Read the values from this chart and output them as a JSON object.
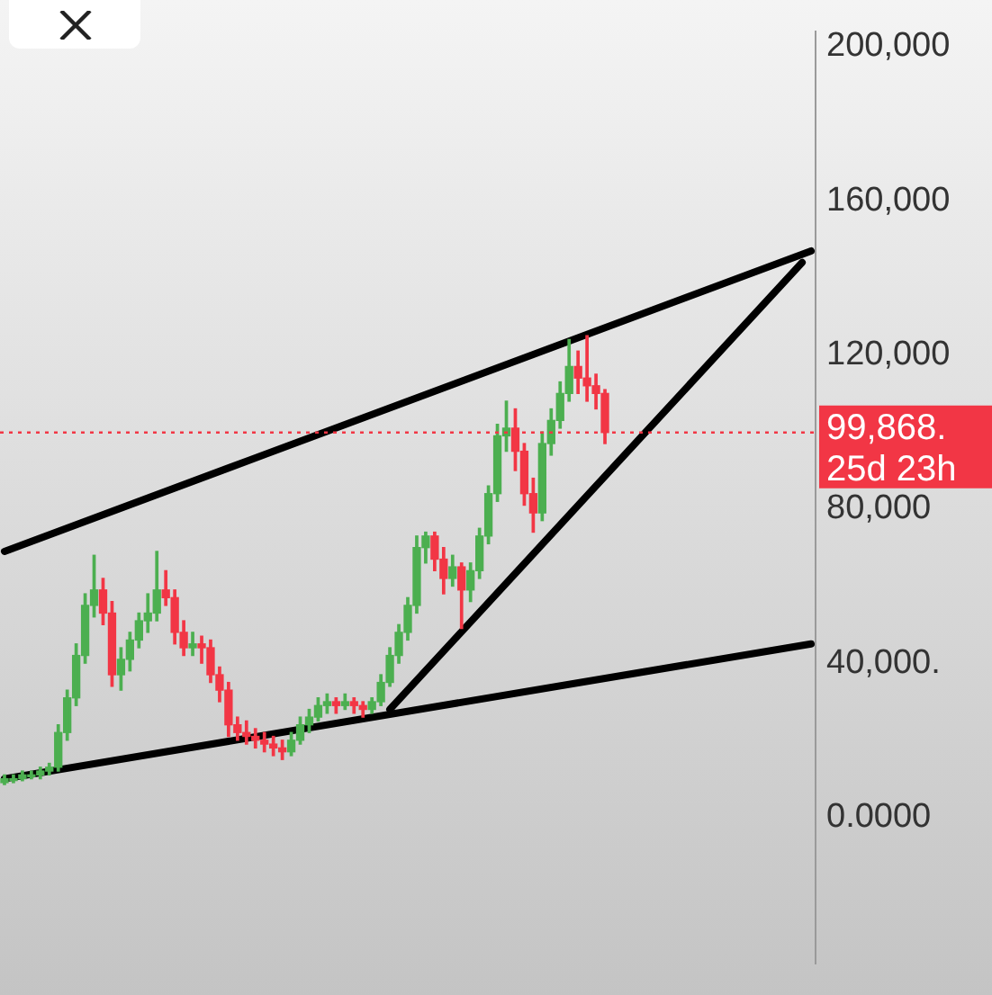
{
  "chart_data": {
    "type": "candlestick",
    "categories": [
      null,
      null,
      null,
      null,
      null,
      null,
      null,
      null,
      null,
      null,
      null,
      null,
      null,
      null,
      null,
      null,
      null,
      null,
      null,
      null,
      null,
      null,
      null,
      null,
      null,
      null,
      null,
      null,
      null,
      null,
      null,
      null,
      null,
      null,
      null,
      null,
      null,
      null,
      null,
      null,
      null,
      null,
      null,
      null,
      null,
      null,
      null,
      null,
      null,
      null,
      null,
      null,
      null,
      null,
      null,
      null,
      null,
      null,
      null,
      null,
      null,
      null,
      null,
      null,
      null,
      null,
      null,
      null,
      null,
      null,
      null,
      null,
      null,
      null,
      null,
      null,
      null,
      null,
      null,
      null,
      null,
      null,
      null,
      null,
      null,
      null,
      null,
      null,
      null,
      null,
      null
    ],
    "ohlc": [
      [
        9000,
        11000,
        8500,
        10000
      ],
      [
        10000,
        11000,
        9000,
        10000
      ],
      [
        10000,
        12000,
        9500,
        11000
      ],
      [
        11000,
        12000,
        10000,
        11000
      ],
      [
        11000,
        13000,
        10000,
        12000
      ],
      [
        12000,
        14000,
        11000,
        13000
      ],
      [
        13000,
        24000,
        12000,
        22000
      ],
      [
        22000,
        33000,
        20000,
        31000
      ],
      [
        31000,
        45000,
        29000,
        42000
      ],
      [
        42000,
        58000,
        40000,
        55000
      ],
      [
        55000,
        68000,
        52000,
        59000
      ],
      [
        59000,
        62000,
        50000,
        53000
      ],
      [
        53000,
        56000,
        34000,
        37000
      ],
      [
        37000,
        44000,
        33000,
        41000
      ],
      [
        41000,
        48000,
        38000,
        46000
      ],
      [
        46000,
        53000,
        44000,
        51000
      ],
      [
        51000,
        58000,
        48000,
        53000
      ],
      [
        53000,
        69000,
        51000,
        59000
      ],
      [
        59000,
        64000,
        55000,
        57000
      ],
      [
        57000,
        59000,
        45000,
        48000
      ],
      [
        48000,
        51000,
        42000,
        44000
      ],
      [
        44000,
        48000,
        42000,
        45000
      ],
      [
        45000,
        47000,
        40000,
        44000
      ],
      [
        44000,
        46000,
        35000,
        37000
      ],
      [
        37000,
        39000,
        30000,
        33000
      ],
      [
        33000,
        35000,
        21000,
        24000
      ],
      [
        24000,
        26000,
        20000,
        22000
      ],
      [
        22000,
        25000,
        19000,
        21000
      ],
      [
        21000,
        23000,
        18000,
        20000
      ],
      [
        20000,
        22000,
        17000,
        19000
      ],
      [
        19000,
        21000,
        16000,
        18000
      ],
      [
        18000,
        20000,
        15000,
        17000
      ],
      [
        17000,
        22000,
        16000,
        20000
      ],
      [
        20000,
        26000,
        19000,
        24000
      ],
      [
        24000,
        28000,
        22000,
        26000
      ],
      [
        26000,
        31000,
        25000,
        29000
      ],
      [
        29000,
        32000,
        27000,
        30000
      ],
      [
        30000,
        31000,
        27000,
        29000
      ],
      [
        29000,
        32000,
        28000,
        30000
      ],
      [
        30000,
        31000,
        27000,
        29000
      ],
      [
        29000,
        30000,
        26000,
        28000
      ],
      [
        28000,
        31000,
        27000,
        30000
      ],
      [
        30000,
        37000,
        29000,
        35000
      ],
      [
        35000,
        44000,
        34000,
        42000
      ],
      [
        42000,
        50000,
        40000,
        48000
      ],
      [
        48000,
        57000,
        46000,
        55000
      ],
      [
        55000,
        73000,
        53000,
        70000
      ],
      [
        70000,
        74000,
        66000,
        73000
      ],
      [
        73000,
        74000,
        64000,
        67000
      ],
      [
        67000,
        70000,
        58000,
        62000
      ],
      [
        62000,
        68000,
        60000,
        65000
      ],
      [
        65000,
        66000,
        49000,
        59000
      ],
      [
        59000,
        66000,
        56000,
        64000
      ],
      [
        64000,
        75000,
        62000,
        73000
      ],
      [
        73000,
        86000,
        71000,
        84000
      ],
      [
        84000,
        102000,
        82000,
        99000
      ],
      [
        99000,
        108000,
        95000,
        101000
      ],
      [
        101000,
        106000,
        90000,
        95000
      ],
      [
        95000,
        97000,
        81000,
        84000
      ],
      [
        84000,
        88000,
        74000,
        79000
      ],
      [
        79000,
        100000,
        77000,
        97000
      ],
      [
        97000,
        106000,
        94000,
        103000
      ],
      [
        103000,
        113000,
        101000,
        110000
      ],
      [
        110000,
        124000,
        108000,
        117000
      ],
      [
        117000,
        121000,
        110000,
        114000
      ],
      [
        114000,
        125000,
        108000,
        112000
      ],
      [
        112000,
        115000,
        106000,
        110000
      ],
      [
        110000,
        111000,
        97000,
        99868
      ],
      null,
      null,
      null,
      null,
      null,
      null,
      null,
      null,
      null,
      null,
      null,
      null,
      null,
      null,
      null,
      null,
      null,
      null,
      null,
      null,
      null,
      null,
      null
    ],
    "colors": [
      "#4caf50",
      "#4caf50",
      "#4caf50",
      "#4caf50",
      "#4caf50",
      "#4caf50",
      "#4caf50",
      "#4caf50",
      "#4caf50",
      "#4caf50",
      "#4caf50",
      "#f23645",
      "#f23645",
      "#4caf50",
      "#4caf50",
      "#4caf50",
      "#4caf50",
      "#4caf50",
      "#f23645",
      "#f23645",
      "#f23645",
      "#4caf50",
      "#f23645",
      "#f23645",
      "#f23645",
      "#f23645",
      "#f23645",
      "#f23645",
      "#f23645",
      "#f23645",
      "#f23645",
      "#f23645",
      "#4caf50",
      "#4caf50",
      "#4caf50",
      "#4caf50",
      "#4caf50",
      "#f23645",
      "#4caf50",
      "#f23645",
      "#f23645",
      "#4caf50",
      "#4caf50",
      "#4caf50",
      "#4caf50",
      "#4caf50",
      "#4caf50",
      "#4caf50",
      "#f23645",
      "#f23645",
      "#4caf50",
      "#f23645",
      "#4caf50",
      "#4caf50",
      "#4caf50",
      "#4caf50",
      "#4caf50",
      "#f23645",
      "#f23645",
      "#f23645",
      "#4caf50",
      "#4caf50",
      "#4caf50",
      "#4caf50",
      "#f23645",
      "#f23645",
      "#f23645",
      "#f23645",
      null,
      null,
      null,
      null,
      null,
      null,
      null,
      null,
      null,
      null,
      null,
      null,
      null,
      null,
      null,
      null,
      null,
      null,
      null,
      null,
      null,
      null,
      null
    ],
    "series": [
      {
        "type": "line",
        "color": "#000000",
        "values": [
          69000,
          null,
          null,
          null,
          null,
          null,
          null,
          null,
          null,
          null,
          null,
          null,
          null,
          null,
          null,
          null,
          null,
          null,
          null,
          null,
          null,
          null,
          null,
          null,
          null,
          null,
          null,
          null,
          null,
          null,
          null,
          null,
          null,
          null,
          null,
          null,
          null,
          null,
          null,
          null,
          null,
          null,
          null,
          null,
          null,
          null,
          null,
          null,
          null,
          null,
          null,
          null,
          null,
          null,
          null,
          null,
          null,
          null,
          null,
          null,
          null,
          null,
          null,
          null,
          null,
          null,
          null,
          null,
          null,
          null,
          null,
          null,
          null,
          null,
          null,
          null,
          null,
          null,
          null,
          null,
          null,
          null,
          null,
          null,
          null,
          null,
          null,
          null,
          null,
          null,
          147000
        ]
      },
      {
        "type": "line",
        "color": "#000000",
        "values": [
          10000,
          null,
          null,
          null,
          null,
          null,
          null,
          null,
          null,
          null,
          null,
          null,
          null,
          null,
          null,
          null,
          null,
          null,
          null,
          null,
          null,
          null,
          null,
          null,
          null,
          null,
          null,
          null,
          null,
          null,
          null,
          null,
          null,
          null,
          null,
          null,
          null,
          null,
          null,
          null,
          null,
          null,
          null,
          null,
          null,
          null,
          null,
          null,
          null,
          null,
          null,
          null,
          null,
          null,
          null,
          null,
          null,
          null,
          null,
          null,
          null,
          null,
          null,
          null,
          null,
          null,
          null,
          null,
          null,
          null,
          null,
          null,
          null,
          null,
          null,
          null,
          null,
          null,
          null,
          null,
          null,
          null,
          null,
          null,
          null,
          null,
          null,
          null,
          null,
          null,
          45000
        ]
      },
      {
        "type": "line",
        "color": "#000000",
        "values": [
          null,
          null,
          null,
          null,
          null,
          null,
          null,
          null,
          null,
          null,
          null,
          null,
          null,
          null,
          null,
          null,
          null,
          null,
          null,
          null,
          null,
          null,
          null,
          null,
          null,
          null,
          null,
          null,
          null,
          null,
          null,
          null,
          null,
          null,
          null,
          null,
          null,
          null,
          null,
          null,
          null,
          null,
          null,
          28000,
          null,
          null,
          null,
          null,
          null,
          null,
          null,
          null,
          null,
          null,
          null,
          null,
          null,
          null,
          null,
          null,
          null,
          null,
          null,
          null,
          null,
          null,
          null,
          null,
          null,
          null,
          null,
          null,
          null,
          null,
          null,
          null,
          null,
          null,
          null,
          null,
          null,
          null,
          null,
          null,
          null,
          null,
          null,
          null,
          null,
          144000,
          null
        ]
      }
    ],
    "ylim": [
      -38000,
      204000
    ],
    "yticks": [
      {
        "value": 200000,
        "label": "200,000"
      },
      {
        "value": 160000,
        "label": "160,000"
      },
      {
        "value": 120000,
        "label": "120,000"
      },
      {
        "value": 80000,
        "label": "80,000"
      },
      {
        "value": 40000,
        "label": "40,000."
      },
      {
        "value": 0,
        "label": "0.0000"
      }
    ],
    "tick_labels": "y",
    "ref_lines": [
      {
        "axis": "y",
        "value": 99868,
        "label": "99,868.",
        "color": "#f23645",
        "line_style": "dotted"
      }
    ],
    "annotations": [
      "25d 23h"
    ],
    "legend": false
  }
}
